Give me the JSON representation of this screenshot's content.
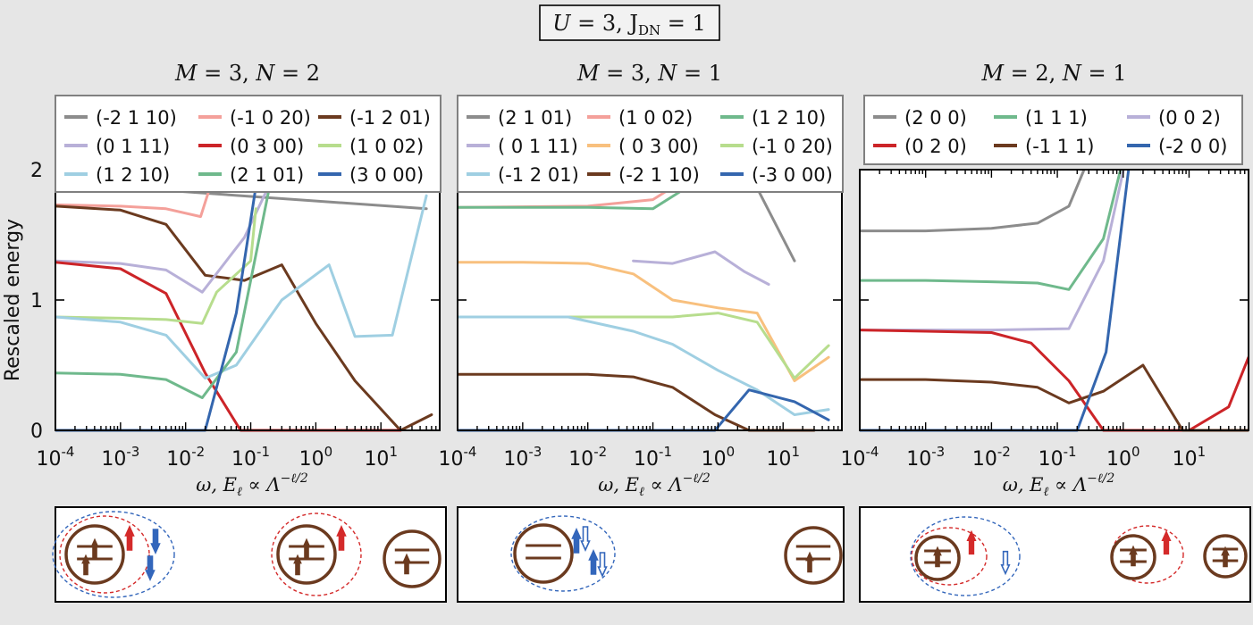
{
  "figure": {
    "param_box": "U = 3,  J_DN = 1",
    "param_box_parts": [
      "U",
      " = 3,  J",
      "DN",
      " = 1"
    ],
    "ylabel": "Rescaled energy",
    "xlabel_parts": [
      "ω,  E",
      "ℓ",
      " ∝ Λ",
      "−ℓ/2"
    ],
    "colors": {
      "background": "#e6e6e6",
      "panel": "#ffffff",
      "legend_border": "#808080",
      "orbital": "#6b3a1f",
      "spin_up": "#d42a2a",
      "spin_down": "#3366bb"
    }
  },
  "chart_data": [
    {
      "type": "line",
      "title": "M = 3,  N = 2",
      "title_parts": [
        "M",
        " = 3,  ",
        "N",
        " = 2"
      ],
      "xscale": "log",
      "xlim": [
        0.0001,
        80
      ],
      "ylim": [
        0,
        2
      ],
      "xticks": [
        {
          "base": "10",
          "exp": "-4",
          "v": 0.0001
        },
        {
          "base": "10",
          "exp": "-3",
          "v": 0.001
        },
        {
          "base": "10",
          "exp": "-2",
          "v": 0.01
        },
        {
          "base": "10",
          "exp": "-1",
          "v": 0.1
        },
        {
          "base": "10",
          "exp": "0",
          "v": 1
        },
        {
          "base": "10",
          "exp": "1",
          "v": 10
        }
      ],
      "yticks": [
        "0",
        "1",
        "2"
      ],
      "legend_columns": 3,
      "series": [
        {
          "name": "(-2 1 10)",
          "color": "#8c8c8c",
          "points": [
            [
              0.0001,
              1.9
            ],
            [
              50,
              1.7
            ]
          ],
          "clipped": true
        },
        {
          "name": "(-1 0 20)",
          "color": "#f4a09a",
          "points": [
            [
              0.0001,
              1.73
            ],
            [
              0.001,
              1.72
            ],
            [
              0.005,
              1.7
            ],
            [
              0.017,
              1.64
            ],
            [
              0.028,
              1.98
            ]
          ]
        },
        {
          "name": "(-1 2 01)",
          "color": "#6b3a1f",
          "points": [
            [
              0.0001,
              1.72
            ],
            [
              0.001,
              1.69
            ],
            [
              0.005,
              1.58
            ],
            [
              0.02,
              1.19
            ],
            [
              0.08,
              1.15
            ],
            [
              0.3,
              1.27
            ],
            [
              1,
              0.82
            ],
            [
              4,
              0.38
            ],
            [
              20,
              0.0
            ],
            [
              60,
              0.12
            ]
          ]
        },
        {
          "name": "(0 1 11)",
          "color": "#b8b0d8",
          "points": [
            [
              0.0001,
              1.3
            ],
            [
              0.001,
              1.28
            ],
            [
              0.005,
              1.23
            ],
            [
              0.018,
              1.06
            ],
            [
              0.08,
              1.48
            ],
            [
              0.2,
              1.9
            ]
          ]
        },
        {
          "name": "(0 3 00)",
          "color": "#cc2428",
          "points": [
            [
              0.0001,
              1.29
            ],
            [
              0.001,
              1.24
            ],
            [
              0.005,
              1.05
            ],
            [
              0.02,
              0.44
            ],
            [
              0.07,
              0.0
            ],
            [
              20,
              0.0
            ]
          ]
        },
        {
          "name": "(1 0 02)",
          "color": "#b7dd8d",
          "points": [
            [
              0.0001,
              0.87
            ],
            [
              0.001,
              0.86
            ],
            [
              0.005,
              0.85
            ],
            [
              0.018,
              0.82
            ],
            [
              0.03,
              1.06
            ],
            [
              0.1,
              1.3
            ],
            [
              0.12,
              1.7
            ]
          ]
        },
        {
          "name": "(1 2 10)",
          "color": "#9fcfe2",
          "points": [
            [
              0.0001,
              0.87
            ],
            [
              0.001,
              0.83
            ],
            [
              0.005,
              0.73
            ],
            [
              0.02,
              0.4
            ],
            [
              0.06,
              0.5
            ],
            [
              0.3,
              1.0
            ],
            [
              1.6,
              1.27
            ],
            [
              4,
              0.72
            ],
            [
              15,
              0.73
            ],
            [
              50,
              1.8
            ]
          ]
        },
        {
          "name": "(2 1 01)",
          "color": "#6fb98c",
          "points": [
            [
              0.0001,
              0.44
            ],
            [
              0.001,
              0.43
            ],
            [
              0.005,
              0.39
            ],
            [
              0.018,
              0.25
            ],
            [
              0.06,
              0.6
            ],
            [
              0.2,
              1.9
            ]
          ]
        },
        {
          "name": "(3 0 00)",
          "color": "#3466ae",
          "points": [
            [
              0.0001,
              0.0
            ],
            [
              0.02,
              0.0
            ],
            [
              0.06,
              0.9
            ],
            [
              0.13,
              1.98
            ]
          ]
        }
      ]
    },
    {
      "type": "line",
      "title": "M = 3,  N = 1",
      "title_parts": [
        "M",
        " = 3,  ",
        "N",
        " = 1"
      ],
      "xscale": "log",
      "xlim": [
        0.0001,
        80
      ],
      "ylim": [
        0,
        2
      ],
      "xticks": [
        {
          "base": "10",
          "exp": "-4",
          "v": 0.0001
        },
        {
          "base": "10",
          "exp": "-3",
          "v": 0.001
        },
        {
          "base": "10",
          "exp": "-2",
          "v": 0.01
        },
        {
          "base": "10",
          "exp": "-1",
          "v": 0.1
        },
        {
          "base": "10",
          "exp": "0",
          "v": 1
        },
        {
          "base": "10",
          "exp": "1",
          "v": 10
        }
      ],
      "yticks": [
        "0",
        "1",
        "2"
      ],
      "legend_columns": 3,
      "series": [
        {
          "name": "(2 1 01)",
          "color": "#8c8c8c",
          "points": [
            [
              3,
              1.98
            ],
            [
              15,
              1.3
            ]
          ]
        },
        {
          "name": "(1 0 02)",
          "color": "#f4a09a",
          "points": [
            [
              0.0001,
              1.71
            ],
            [
              0.01,
              1.72
            ],
            [
              0.1,
              1.77
            ],
            [
              0.3,
              1.92
            ]
          ]
        },
        {
          "name": "(1 2 10)",
          "color": "#6fb98c",
          "points": [
            [
              0.0001,
              1.71
            ],
            [
              0.01,
              1.71
            ],
            [
              0.1,
              1.7
            ],
            [
              0.3,
              1.85
            ],
            [
              0.8,
              1.98
            ]
          ]
        },
        {
          "name": "( 0 1 11)",
          "color": "#b8b0d8",
          "points": [
            [
              0.05,
              1.3
            ],
            [
              0.2,
              1.28
            ],
            [
              0.9,
              1.37
            ],
            [
              2.5,
              1.22
            ],
            [
              6,
              1.12
            ]
          ]
        },
        {
          "name": "( 0 3 00)",
          "color": "#f8c07e",
          "points": [
            [
              0.0001,
              1.29
            ],
            [
              0.001,
              1.29
            ],
            [
              0.01,
              1.28
            ],
            [
              0.05,
              1.2
            ],
            [
              0.2,
              1.0
            ],
            [
              1,
              0.94
            ],
            [
              4,
              0.9
            ],
            [
              15,
              0.38
            ],
            [
              50,
              0.56
            ]
          ]
        },
        {
          "name": "(-1 0 20)",
          "color": "#b7dd8d",
          "points": [
            [
              0.005,
              0.87
            ],
            [
              0.05,
              0.87
            ],
            [
              0.2,
              0.87
            ],
            [
              1,
              0.9
            ],
            [
              4,
              0.83
            ],
            [
              15,
              0.4
            ],
            [
              50,
              0.65
            ]
          ]
        },
        {
          "name": "(-1 2 01)",
          "color": "#9fcfe2",
          "points": [
            [
              0.0001,
              0.87
            ],
            [
              0.005,
              0.87
            ],
            [
              0.05,
              0.76
            ],
            [
              0.2,
              0.66
            ],
            [
              1,
              0.46
            ],
            [
              4,
              0.31
            ],
            [
              15,
              0.12
            ],
            [
              50,
              0.16
            ]
          ]
        },
        {
          "name": "(-2 1 10)",
          "color": "#6b3a1f",
          "points": [
            [
              0.0001,
              0.43
            ],
            [
              0.001,
              0.43
            ],
            [
              0.01,
              0.43
            ],
            [
              0.05,
              0.41
            ],
            [
              0.2,
              0.33
            ],
            [
              0.9,
              0.12
            ],
            [
              3,
              0.0
            ],
            [
              30,
              0.0
            ]
          ]
        },
        {
          "name": "(-3 0 00)",
          "color": "#3466ae",
          "points": [
            [
              0.0001,
              0.0
            ],
            [
              0.9,
              0.0
            ],
            [
              3,
              0.31
            ],
            [
              15,
              0.22
            ],
            [
              50,
              0.08
            ]
          ]
        }
      ]
    },
    {
      "type": "line",
      "title": "M = 2,  N = 1",
      "title_parts": [
        "M",
        " = 2,  ",
        "N",
        " = 1"
      ],
      "xscale": "log",
      "xlim": [
        0.0001,
        80
      ],
      "ylim": [
        0,
        2
      ],
      "xticks": [
        {
          "base": "10",
          "exp": "-4",
          "v": 0.0001
        },
        {
          "base": "10",
          "exp": "-3",
          "v": 0.001
        },
        {
          "base": "10",
          "exp": "-2",
          "v": 0.01
        },
        {
          "base": "10",
          "exp": "-1",
          "v": 0.1
        },
        {
          "base": "10",
          "exp": "0",
          "v": 1
        },
        {
          "base": "10",
          "exp": "1",
          "v": 10
        }
      ],
      "yticks": [
        "0",
        "1",
        "2"
      ],
      "legend_columns": 3,
      "series": [
        {
          "name": "(2 0 0)",
          "color": "#8c8c8c",
          "points": [
            [
              0.0001,
              1.53
            ],
            [
              0.001,
              1.53
            ],
            [
              0.01,
              1.55
            ],
            [
              0.05,
              1.59
            ],
            [
              0.15,
              1.72
            ],
            [
              0.25,
              1.99
            ]
          ]
        },
        {
          "name": "(1 1 1)",
          "color": "#6fb98c",
          "points": [
            [
              0.0001,
              1.15
            ],
            [
              0.001,
              1.15
            ],
            [
              0.01,
              1.14
            ],
            [
              0.05,
              1.13
            ],
            [
              0.15,
              1.08
            ],
            [
              0.5,
              1.47
            ],
            [
              0.9,
              1.99
            ]
          ]
        },
        {
          "name": "(0 0 2)",
          "color": "#b8b0d8",
          "points": [
            [
              0.0001,
              0.77
            ],
            [
              0.001,
              0.77
            ],
            [
              0.01,
              0.77
            ],
            [
              0.15,
              0.78
            ],
            [
              0.5,
              1.3
            ],
            [
              1,
              1.99
            ]
          ]
        },
        {
          "name": "(0 2 0)",
          "color": "#cc2428",
          "points": [
            [
              0.0001,
              0.77
            ],
            [
              0.001,
              0.76
            ],
            [
              0.01,
              0.75
            ],
            [
              0.04,
              0.67
            ],
            [
              0.15,
              0.38
            ],
            [
              0.5,
              0.0
            ],
            [
              10,
              0.0
            ],
            [
              40,
              0.18
            ],
            [
              80,
              0.56
            ]
          ]
        },
        {
          "name": "(-1 1 1)",
          "color": "#6b3a1f",
          "points": [
            [
              0.0001,
              0.39
            ],
            [
              0.001,
              0.39
            ],
            [
              0.01,
              0.37
            ],
            [
              0.05,
              0.33
            ],
            [
              0.15,
              0.21
            ],
            [
              0.5,
              0.3
            ],
            [
              2,
              0.5
            ],
            [
              8,
              0.0
            ],
            [
              80,
              0.0
            ]
          ]
        },
        {
          "name": "(-2 0 0)",
          "color": "#3466ae",
          "points": [
            [
              0.0001,
              0.0
            ],
            [
              0.2,
              0.0
            ],
            [
              0.55,
              0.6
            ],
            [
              1.2,
              1.99
            ]
          ]
        }
      ]
    }
  ]
}
